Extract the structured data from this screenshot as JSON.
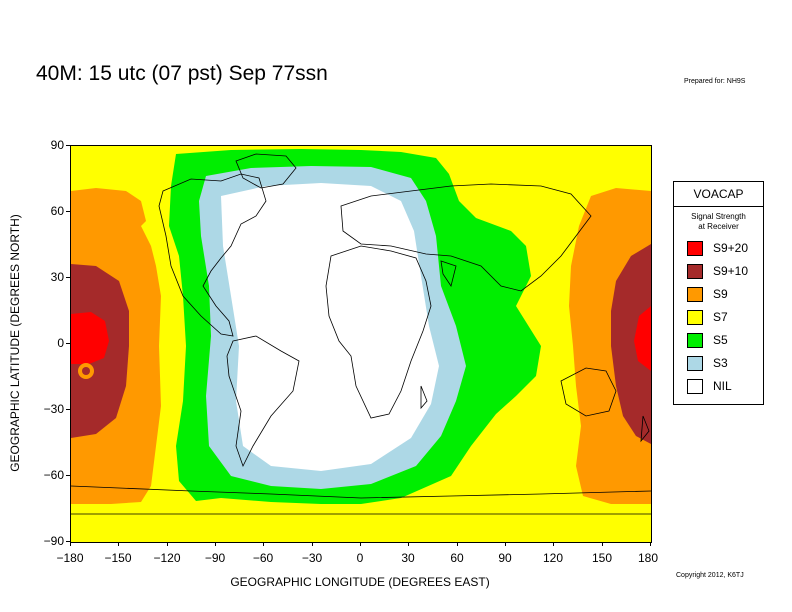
{
  "title": "40M:  15 utc (07 pst) Sep 77ssn",
  "prepared_for": "Prepared for: NH9S",
  "copyright": "Copyright 2012, K6TJ",
  "axes": {
    "ylabel": "GEOGRAPHIC LATITUDE (DEGREES NORTH)",
    "xlabel": "GEOGRAPHIC LONGITUDE (DEGREES EAST)",
    "yticks": [
      "90",
      "60",
      "30",
      "0",
      "−30",
      "−60",
      "−90"
    ],
    "xticks": [
      "−180",
      "−150",
      "−120",
      "−90",
      "−60",
      "−30",
      "0",
      "30",
      "60",
      "90",
      "120",
      "150",
      "180"
    ]
  },
  "legend": {
    "title": "VOACAP",
    "subtitle_line1": "Signal Strength",
    "subtitle_line2": "at Receiver",
    "items": [
      {
        "label": "S9+20",
        "color": "#ff0000"
      },
      {
        "label": "S9+10",
        "color": "#a52a2a"
      },
      {
        "label": "S9",
        "color": "#ff9900"
      },
      {
        "label": "S7",
        "color": "#ffff00"
      },
      {
        "label": "S5",
        "color": "#00ee00"
      },
      {
        "label": "S3",
        "color": "#add8e6"
      },
      {
        "label": "NIL",
        "color": "#ffffff"
      }
    ]
  }
}
